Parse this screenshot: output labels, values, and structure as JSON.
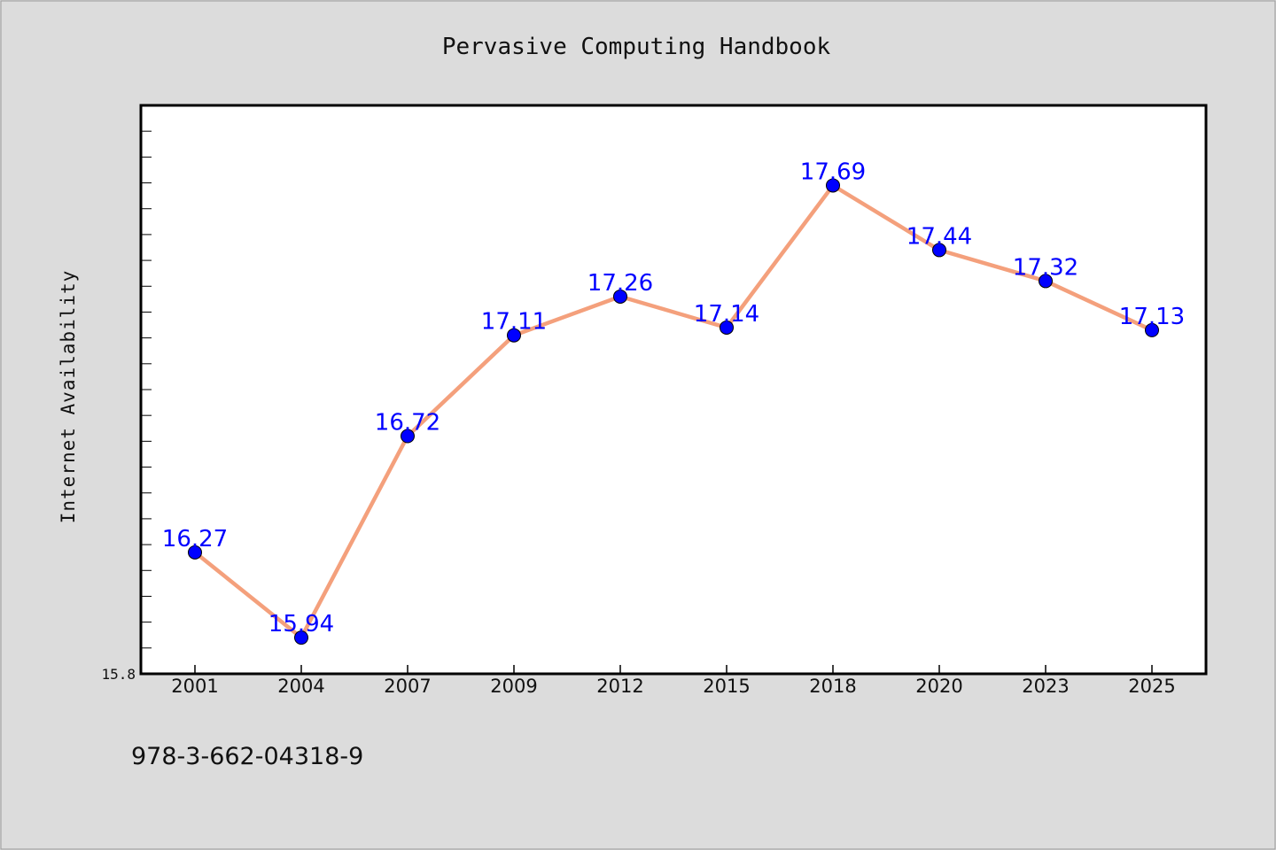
{
  "chart_data": {
    "type": "line",
    "title": "Pervasive Computing Handbook",
    "xlabel": "",
    "ylabel": "Internet Availability",
    "categories": [
      "2001",
      "2004",
      "2007",
      "2009",
      "2012",
      "2015",
      "2018",
      "2020",
      "2023",
      "2025"
    ],
    "series": [
      {
        "values": [
          16.27,
          15.94,
          16.72,
          17.11,
          17.26,
          17.14,
          17.69,
          17.44,
          17.32,
          17.13
        ],
        "labels": [
          "16.27",
          "15.94",
          "16.72",
          "17.11",
          "17.26",
          "17.14",
          "17.69",
          "17.44",
          "17.32",
          "17.13"
        ]
      }
    ],
    "ylim": [
      15.8,
      18.0
    ],
    "yticks_labeled": [
      "15.8"
    ],
    "y_minor_tick_step": 0.1,
    "grid": false,
    "legend": "none",
    "colors": {
      "line": "#f4a07c",
      "marker": "#0000ff",
      "data_label": "#0000ff",
      "background": "#dcdcdc",
      "plot_background": "#ffffff"
    }
  },
  "footer": {
    "isbn": "978-3-662-04318-9"
  }
}
